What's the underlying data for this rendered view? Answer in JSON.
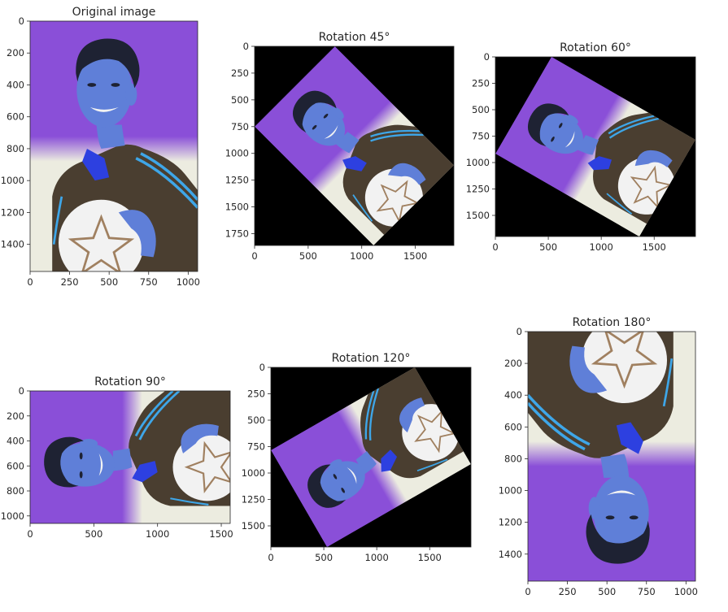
{
  "chart_data": [
    {
      "type": "image",
      "title": "Original image",
      "xlim": [
        0,
        1060
      ],
      "ylim": [
        1570,
        0
      ],
      "xticks": [
        0,
        250,
        500,
        750,
        1000
      ],
      "yticks": [
        0,
        200,
        400,
        600,
        800,
        1000,
        1200,
        1400
      ],
      "image_size": [
        1060,
        1570
      ],
      "rotation_deg": 0
    },
    {
      "type": "image",
      "title": "Rotation 45°",
      "xlim": [
        0,
        1860
      ],
      "ylim": [
        1860,
        0
      ],
      "xticks": [
        0,
        500,
        1000,
        1500
      ],
      "yticks": [
        0,
        250,
        500,
        750,
        1000,
        1250,
        1500,
        1750
      ],
      "image_size": [
        1060,
        1570
      ],
      "rotation_deg": 45
    },
    {
      "type": "image",
      "title": "Rotation 60°",
      "xlim": [
        0,
        1890
      ],
      "ylim": [
        1700,
        0
      ],
      "xticks": [
        0,
        500,
        1000,
        1500
      ],
      "yticks": [
        0,
        250,
        500,
        750,
        1000,
        1250,
        1500
      ],
      "image_size": [
        1060,
        1570
      ],
      "rotation_deg": 60
    },
    {
      "type": "image",
      "title": "Rotation 90°",
      "xlim": [
        0,
        1570
      ],
      "ylim": [
        1060,
        0
      ],
      "xticks": [
        0,
        500,
        1000,
        1500
      ],
      "yticks": [
        0,
        200,
        400,
        600,
        800,
        1000
      ],
      "image_size": [
        1060,
        1570
      ],
      "rotation_deg": 90
    },
    {
      "type": "image",
      "title": "Rotation 120°",
      "xlim": [
        0,
        1890
      ],
      "ylim": [
        1700,
        0
      ],
      "xticks": [
        0,
        500,
        1000,
        1500
      ],
      "yticks": [
        0,
        250,
        500,
        750,
        1000,
        1250,
        1500
      ],
      "image_size": [
        1060,
        1570
      ],
      "rotation_deg": 120
    },
    {
      "type": "image",
      "title": "Rotation 180°",
      "xlim": [
        0,
        1060
      ],
      "ylim": [
        1570,
        0
      ],
      "xticks": [
        0,
        250,
        500,
        750,
        1000
      ],
      "yticks": [
        0,
        200,
        400,
        600,
        800,
        1000,
        1200,
        1400
      ],
      "image_size": [
        1060,
        1570
      ],
      "rotation_deg": 180
    }
  ],
  "colors": {
    "background_black": "#000000",
    "purple_bg": "#8a4fd8",
    "light_bg": "#ecece0",
    "skin": "#5f7fd8",
    "hair": "#1e2233",
    "jacket": "#4a3e30",
    "stripe": "#3ea6e8",
    "collar": "#2d40e0",
    "ball": "#f2f2f2",
    "ball_star": "#a08060",
    "axis": "#262626"
  }
}
